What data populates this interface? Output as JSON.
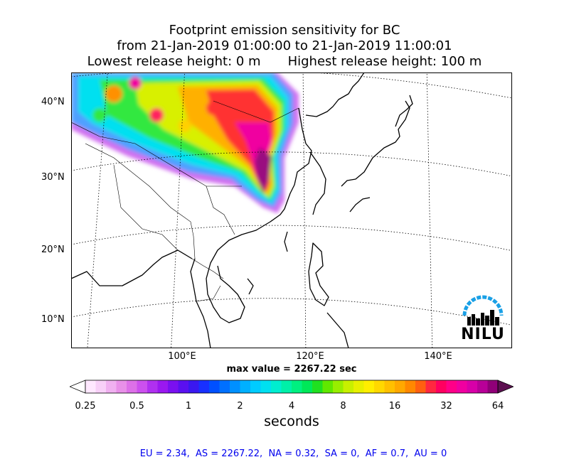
{
  "title": {
    "line1": "Footprint emission sensitivity for BC",
    "line2": "from 21-Jan-2019 01:00:00 to 21-Jan-2019 11:00:01",
    "lowest": "Lowest release height: 0 m",
    "highest": "Highest release height: 100 m"
  },
  "map": {
    "lat_labels": [
      "40°N",
      "30°N",
      "20°N",
      "10°N"
    ],
    "lon_labels": [
      "100°E",
      "120°E",
      "140°E"
    ]
  },
  "max_value": "max value = 2267.22 sec",
  "colorbar": {
    "ticks": [
      "0.25",
      "0.5",
      "1",
      "2",
      "4",
      "8",
      "16",
      "32",
      "64"
    ],
    "units": "seconds",
    "colors": [
      "#ffe8ff",
      "#f8d0f8",
      "#f0b0f0",
      "#e890e8",
      "#dd70e8",
      "#cc50ee",
      "#b030f0",
      "#9a18f0",
      "#7a10f0",
      "#5a10f0",
      "#3a18f0",
      "#1830ff",
      "#0050ff",
      "#0070ff",
      "#0090ff",
      "#00b0ff",
      "#00ccff",
      "#00e0f0",
      "#00eed0",
      "#00f0a8",
      "#00f080",
      "#00e858",
      "#20e020",
      "#60e800",
      "#98ee00",
      "#c8f000",
      "#e8f000",
      "#ffee00",
      "#ffd800",
      "#ffc000",
      "#ffa800",
      "#ff8800",
      "#ff6010",
      "#ff2840",
      "#ff0060",
      "#ff0088",
      "#f000a0",
      "#d800a8",
      "#b80098",
      "#900078"
    ],
    "under_color": "#ffffff",
    "over_color": "#5c1050"
  },
  "region_summary": "EU = 2.34,  AS = 2267.22,  NA = 0.32,  SA = 0,  AF = 0.7,  AU = 0",
  "logo": {
    "text": "NILU",
    "arc_color": "#1aa0e6"
  }
}
